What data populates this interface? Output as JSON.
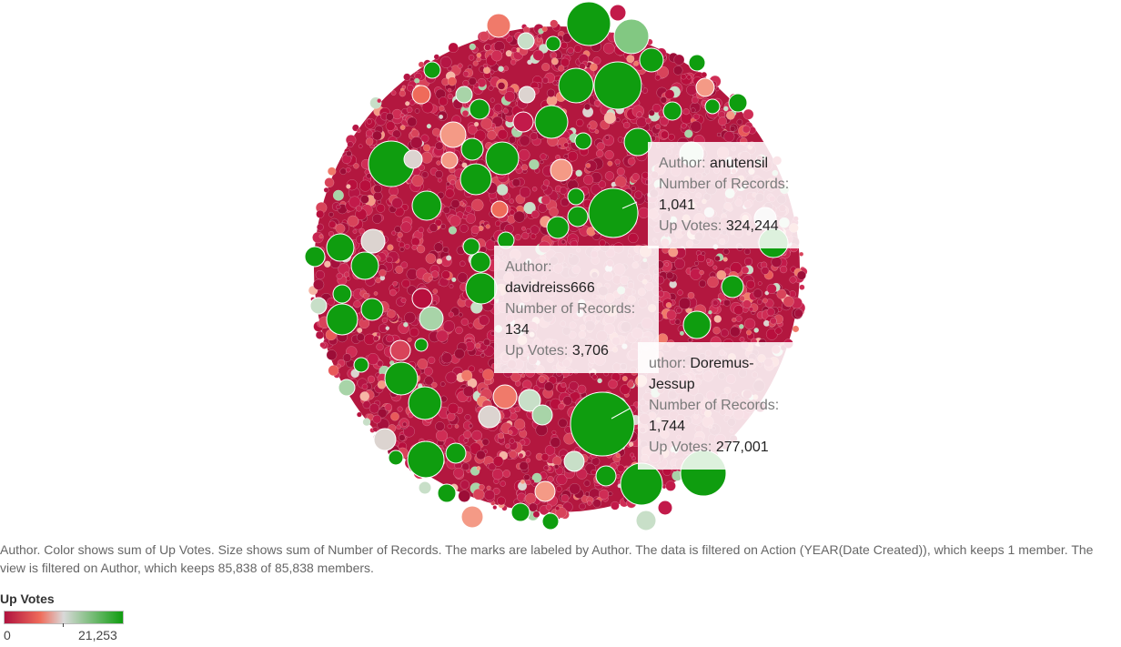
{
  "chart_data": {
    "type": "packed-bubble",
    "color_field": "Up Votes",
    "size_field": "Number of Records",
    "label_field": "Author",
    "color_range": [
      0,
      21253
    ],
    "colors": {
      "low": "#b0123f",
      "mid_low": "#ef6b5a",
      "mid": "#d9d9d9",
      "high": "#0f9d0f"
    },
    "highlighted_marks": [
      {
        "author": "anutensil",
        "records": "1,041",
        "up_votes": "324,244"
      },
      {
        "author": "davidreiss666",
        "records": "134",
        "up_votes": "3,706"
      },
      {
        "author": "Doremus-Jessup",
        "records": "1,744",
        "up_votes": "277,001"
      }
    ],
    "members_kept": "85,838",
    "members_total": "85,838"
  },
  "tooltips": {
    "author_label": "Author:",
    "records_label": "Number of Records:",
    "upvotes_label": "Up Votes:",
    "t1": {
      "author": "anutensil",
      "records": "1,041",
      "upvotes": "324,244"
    },
    "t2": {
      "author": "davidreiss666",
      "records": "134",
      "upvotes": "3,706"
    },
    "t3": {
      "author_prefix": "uthor:",
      "author_line1": "Doremus-",
      "author_line2": "Jessup",
      "records": "1,744",
      "upvotes": "277,001"
    }
  },
  "caption": "Author.  Color shows sum of Up Votes.  Size shows sum of Number of Records.  The marks are labeled by Author. The data is filtered on Action (YEAR(Date Created)), which keeps 1 member. The view is filtered on Author, which keeps 85,838 of 85,838 members.",
  "legend": {
    "title": "Up Votes",
    "min": "0",
    "max": "21,253"
  }
}
